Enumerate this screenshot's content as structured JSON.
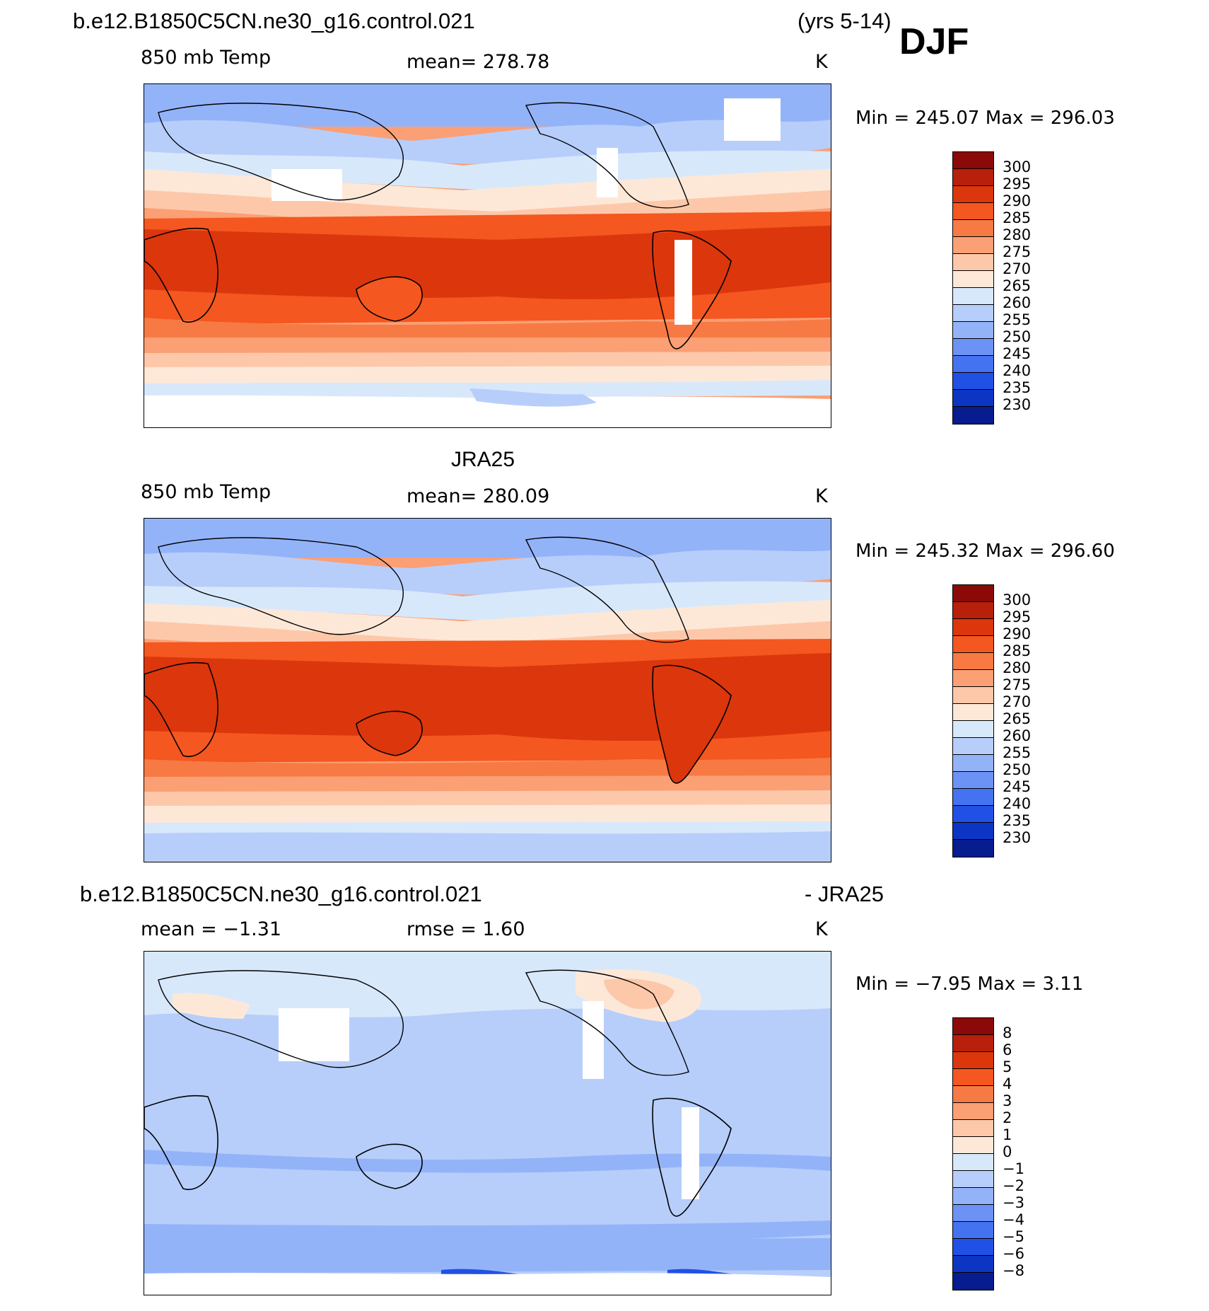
{
  "header": {
    "case_name": "b.e12.B1850C5CN.ne30_g16.control.021",
    "years": "(yrs 5-14)",
    "season": "DJF"
  },
  "panels": [
    {
      "id": "model",
      "title": "",
      "variable": "850 mb Temp",
      "center_stat": "mean=  278.78",
      "units": "K",
      "minmax": "Min  =  245.07  Max  =  296.03",
      "colorbar_labels": [
        "300",
        "295",
        "290",
        "285",
        "280",
        "275",
        "270",
        "265",
        "260",
        "255",
        "250",
        "245",
        "240",
        "235",
        "230"
      ]
    },
    {
      "id": "obs",
      "title": "JRA25",
      "variable": "850 mb Temp",
      "center_stat": "mean=  280.09",
      "units": "K",
      "minmax": "Min  =  245.32  Max  =  296.60",
      "colorbar_labels": [
        "300",
        "295",
        "290",
        "285",
        "280",
        "275",
        "270",
        "265",
        "260",
        "255",
        "250",
        "245",
        "240",
        "235",
        "230"
      ]
    },
    {
      "id": "diff",
      "title_left": "b.e12.B1850C5CN.ne30_g16.control.021",
      "title_right": "- JRA25",
      "left_stat": "mean  =    −1.31",
      "center_stat": "rmse  =     1.60",
      "units": "K",
      "minmax": "Min  =    −7.95  Max  =     3.11",
      "colorbar_labels": [
        "8",
        "6",
        "5",
        "4",
        "3",
        "2",
        "1",
        "0",
        "−1",
        "−2",
        "−3",
        "−4",
        "−5",
        "−6",
        "−8"
      ]
    }
  ],
  "colors": {
    "palette": [
      "#8b0a08",
      "#b8200b",
      "#dc360c",
      "#f4571f",
      "#f77a44",
      "#fb9f74",
      "#fdc8a9",
      "#fde8d8",
      "#d8e8fb",
      "#b7cefb",
      "#93b3f9",
      "#6c92f5",
      "#4472f0",
      "#2151e4",
      "#0d35c4",
      "#071c8f"
    ],
    "land_outline": "#000000",
    "missing": "#ffffff"
  }
}
